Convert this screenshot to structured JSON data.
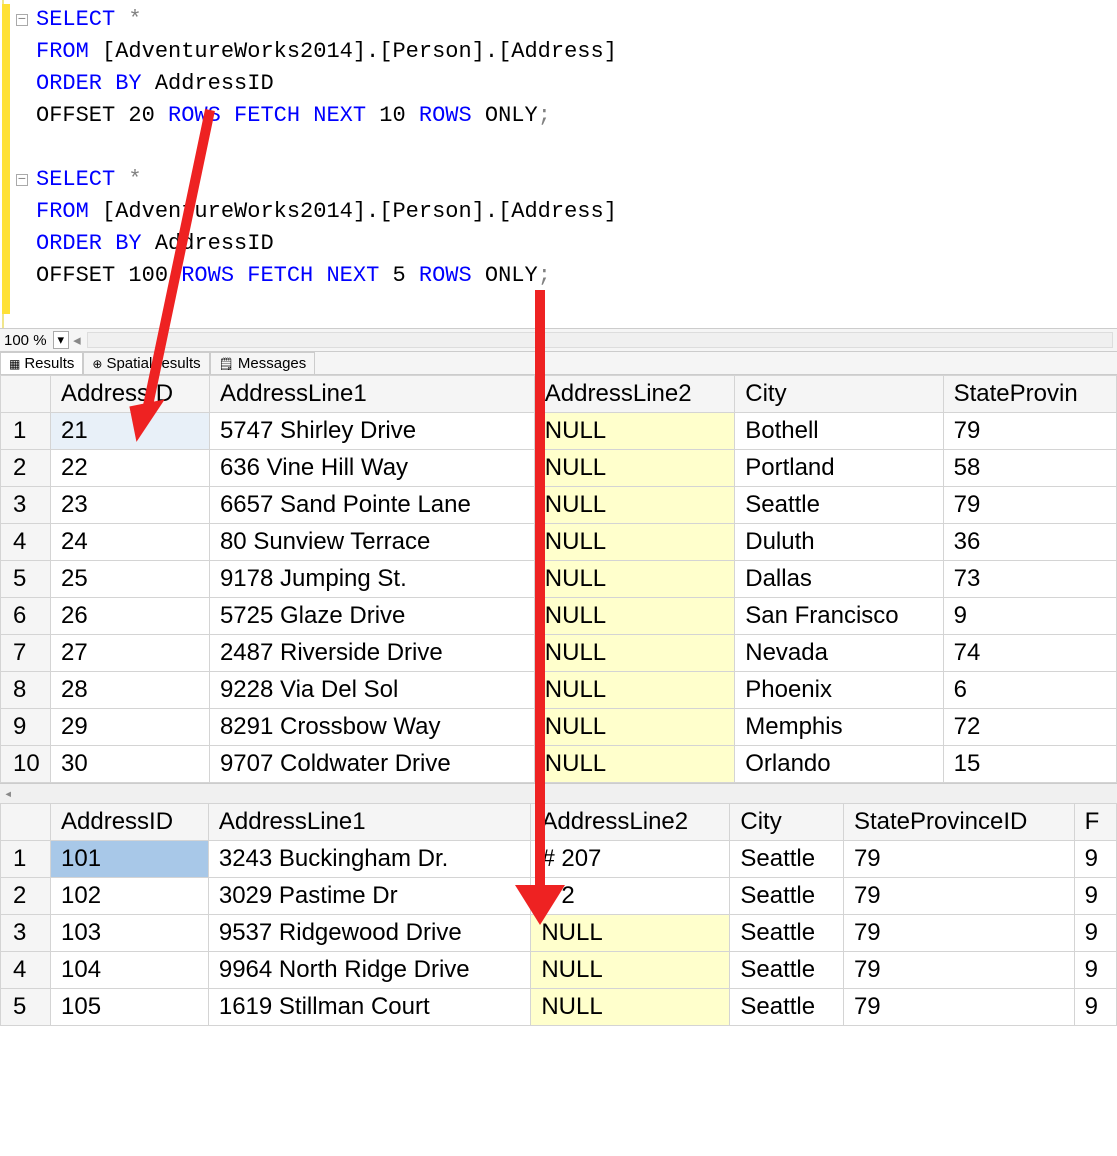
{
  "sql": {
    "query1": {
      "select": "SELECT",
      "star": " *",
      "from": "FROM",
      "table": " [AdventureWorks2014].[Person].[Address]",
      "orderby": "ORDER BY",
      "ordercol": " AddressID",
      "offset_pre": "OFFSET ",
      "offset_num": "20",
      "rows1": " ROWS ",
      "fetch": "FETCH",
      "next": " NEXT ",
      "fetch_num": "10",
      "rows2": " ROWS ",
      "only": "ONLY",
      "semi": ";"
    },
    "query2": {
      "select": "SELECT",
      "star": " *",
      "from": "FROM",
      "table": " [AdventureWorks2014].[Person].[Address]",
      "orderby": "ORDER BY",
      "ordercol": " AddressID",
      "offset_pre": "OFFSET ",
      "offset_num": "100",
      "rows1": " ROWS ",
      "fetch": "FETCH",
      "next": " NEXT ",
      "fetch_num": "5",
      "rows2": " ROWS ",
      "only": "ONLY",
      "semi": ";"
    }
  },
  "zoom": "100 %",
  "tabs": {
    "results": "Results",
    "spatial": "Spatial results",
    "messages": "Messages"
  },
  "grid1": {
    "headers": [
      "AddressID",
      "AddressLine1",
      "AddressLine2",
      "City",
      "StateProvin"
    ],
    "rows": [
      {
        "n": "1",
        "id": "21",
        "a1": "5747 Shirley Drive",
        "a2": "NULL",
        "city": "Bothell",
        "sp": "79",
        "null": true
      },
      {
        "n": "2",
        "id": "22",
        "a1": "636 Vine Hill Way",
        "a2": "NULL",
        "city": "Portland",
        "sp": "58",
        "null": true
      },
      {
        "n": "3",
        "id": "23",
        "a1": "6657 Sand Pointe Lane",
        "a2": "NULL",
        "city": "Seattle",
        "sp": "79",
        "null": true
      },
      {
        "n": "4",
        "id": "24",
        "a1": "80 Sunview Terrace",
        "a2": "NULL",
        "city": "Duluth",
        "sp": "36",
        "null": true
      },
      {
        "n": "5",
        "id": "25",
        "a1": "9178 Jumping St.",
        "a2": "NULL",
        "city": "Dallas",
        "sp": "73",
        "null": true
      },
      {
        "n": "6",
        "id": "26",
        "a1": "5725 Glaze Drive",
        "a2": "NULL",
        "city": "San Francisco",
        "sp": "9",
        "null": true
      },
      {
        "n": "7",
        "id": "27",
        "a1": "2487 Riverside Drive",
        "a2": "NULL",
        "city": "Nevada",
        "sp": "74",
        "null": true
      },
      {
        "n": "8",
        "id": "28",
        "a1": "9228 Via Del Sol",
        "a2": "NULL",
        "city": "Phoenix",
        "sp": "6",
        "null": true
      },
      {
        "n": "9",
        "id": "29",
        "a1": "8291 Crossbow Way",
        "a2": "NULL",
        "city": "Memphis",
        "sp": "72",
        "null": true
      },
      {
        "n": "10",
        "id": "30",
        "a1": "9707 Coldwater Drive",
        "a2": "NULL",
        "city": "Orlando",
        "sp": "15",
        "null": true
      }
    ]
  },
  "grid2": {
    "headers": [
      "AddressID",
      "AddressLine1",
      "AddressLine2",
      "City",
      "StateProvinceID",
      "F"
    ],
    "rows": [
      {
        "n": "1",
        "id": "101",
        "a1": "3243 Buckingham Dr.",
        "a2": "# 207",
        "city": "Seattle",
        "sp": "79",
        "p": "9",
        "null": false
      },
      {
        "n": "2",
        "id": "102",
        "a1": "3029 Pastime Dr",
        "a2": "# 2",
        "city": "Seattle",
        "sp": "79",
        "p": "9",
        "null": false
      },
      {
        "n": "3",
        "id": "103",
        "a1": "9537 Ridgewood Drive",
        "a2": "NULL",
        "city": "Seattle",
        "sp": "79",
        "p": "9",
        "null": true
      },
      {
        "n": "4",
        "id": "104",
        "a1": "9964 North Ridge Drive",
        "a2": "NULL",
        "city": "Seattle",
        "sp": "79",
        "p": "9",
        "null": true
      },
      {
        "n": "5",
        "id": "105",
        "a1": "1619 Stillman Court",
        "a2": "NULL",
        "city": "Seattle",
        "sp": "79",
        "p": "9",
        "null": true
      }
    ]
  },
  "colors": {
    "keyword": "#0000ff",
    "null_bg": "#ffffcc",
    "arrow": "#ee2222",
    "selected": "#e8f0f8",
    "selected_blue": "#a8c8e8",
    "yellow_margin": "#ffe135"
  }
}
